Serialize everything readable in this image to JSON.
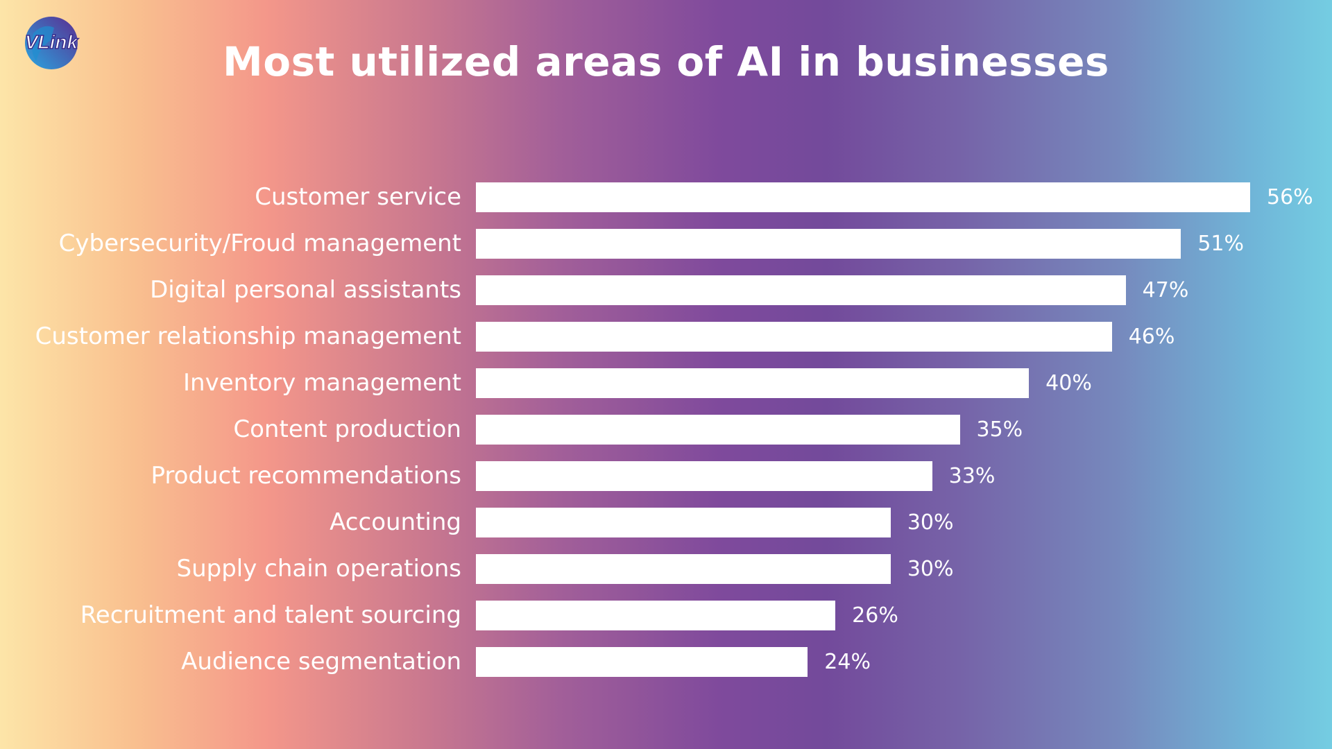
{
  "logo_text": "VLink",
  "chart_data": {
    "type": "bar",
    "orientation": "horizontal",
    "title": "Most utilized areas of AI in businesses",
    "categories": [
      "Customer service",
      "Cybersecurity/Froud management",
      "Digital personal assistants",
      "Customer relationship management",
      "Inventory management",
      "Content production",
      "Product recommendations",
      "Accounting",
      "Supply chain operations",
      "Recruitment and talent sourcing",
      "Audience segmentation"
    ],
    "values": [
      56,
      51,
      47,
      46,
      40,
      35,
      33,
      30,
      30,
      26,
      24
    ],
    "value_labels": [
      "56%",
      "51%",
      "47%",
      "46%",
      "40%",
      "35%",
      "33%",
      "30%",
      "30%",
      "26%",
      "24%"
    ],
    "unit": "%",
    "xlim": [
      0,
      56
    ],
    "grid": false,
    "colors": {
      "bar": "#ffffff",
      "text": "#ffffff"
    }
  }
}
